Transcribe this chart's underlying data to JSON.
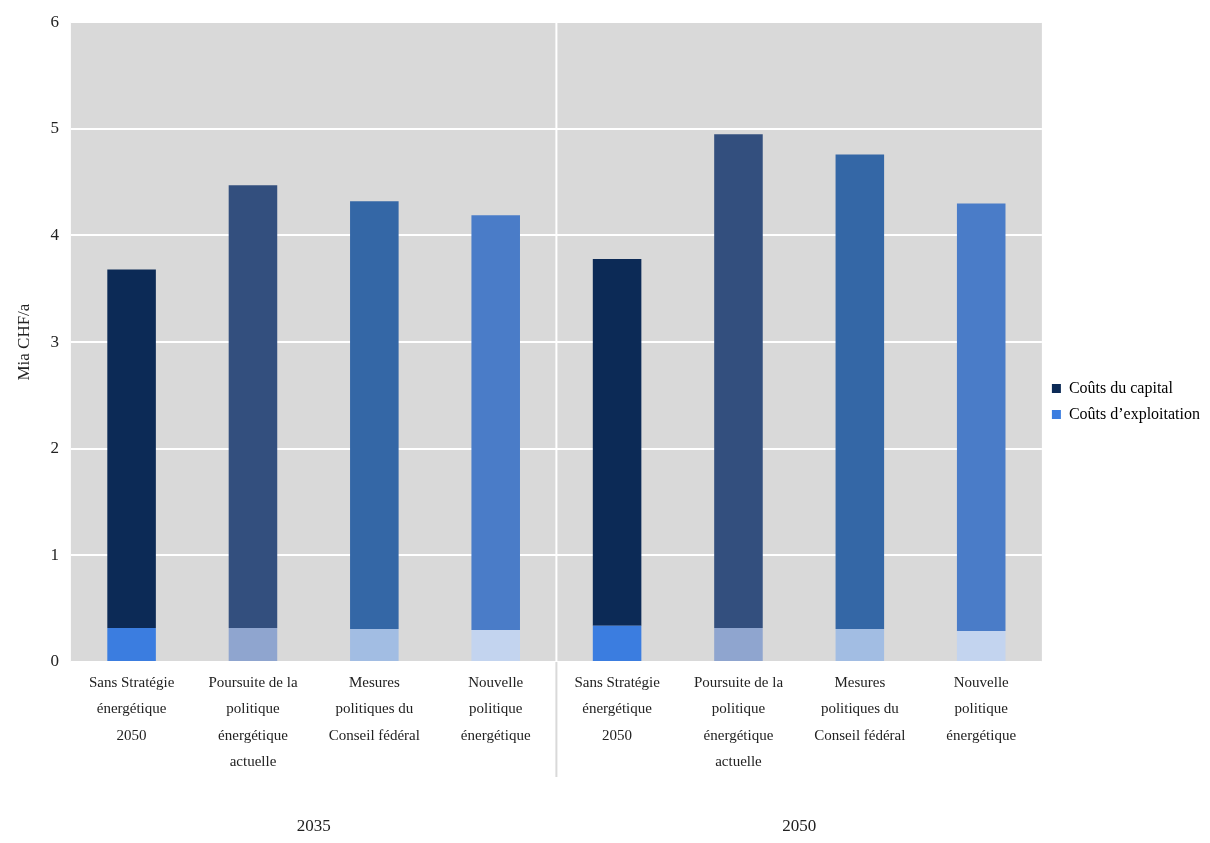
{
  "chart_data": {
    "type": "bar",
    "stacked": true,
    "ylabel": "Mia CHF/a",
    "categories": [
      "Sans Stratégie énergétique 2050",
      "Poursuite de la politique énergétique actuelle",
      "Mesures politiques du Conseil fédéral",
      "Nouvelle politique énergétique",
      "Sans Stratégie énergétique 2050",
      "Poursuite de la politique énergétique actuelle",
      "Mesures politiques du Conseil fédéral",
      "Nouvelle politique énergétique"
    ],
    "series": [
      {
        "name": "Coûts d’exploitation",
        "color": "#3b7de0",
        "colors": [
          "#3b7de0",
          "#8fa5cf",
          "#a2bde3",
          "#c3d4ef",
          "#3b7de0",
          "#8fa5cf",
          "#a2bde3",
          "#c3d4ef"
        ],
        "values": [
          0.32,
          0.32,
          0.31,
          0.3,
          0.34,
          0.32,
          0.31,
          0.29
        ]
      },
      {
        "name": "Coûts du capital",
        "color": "#0c2a56",
        "colors": [
          "#0c2a56",
          "#334f7e",
          "#3467a6",
          "#4a7cc8",
          "#0c2a56",
          "#334f7e",
          "#3467a6",
          "#4a7cc8"
        ],
        "values": [
          3.36,
          4.15,
          4.01,
          3.89,
          3.44,
          4.63,
          4.45,
          4.01
        ]
      }
    ],
    "ylim": [
      0,
      6
    ],
    "yticks": [
      0,
      1,
      2,
      3,
      4,
      5,
      6
    ],
    "grid": "y",
    "legend": "right",
    "annotations": [
      "2035",
      "2050"
    ]
  }
}
